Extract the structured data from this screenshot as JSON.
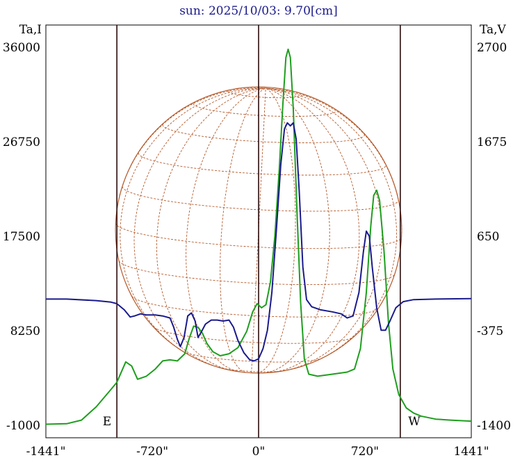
{
  "chart_data": {
    "type": "line",
    "title": "sun: 2025/10/03: 9.70[cm]",
    "y_left_label": "Ta,I",
    "y_right_label": "Ta,V",
    "x_ticks": [
      "-1441\"",
      "-720\"",
      "0\"",
      "720\"",
      "1441\""
    ],
    "x_tick_values": [
      -1441,
      -720,
      0,
      720,
      1441
    ],
    "xlim": [
      -1441,
      1441
    ],
    "y_left_ticks": [
      "36000",
      "26750",
      "17500",
      "8250",
      "-1000"
    ],
    "y_left_tick_values": [
      36000,
      26750,
      17500,
      8250,
      -1000
    ],
    "ylim_left": [
      -1000,
      36000
    ],
    "y_right_ticks": [
      "2700",
      "1675",
      "650",
      "-375",
      "-1400"
    ],
    "y_right_tick_values": [
      2700,
      1675,
      650,
      -375,
      -1400
    ],
    "ylim_right": [
      -1400,
      2700
    ],
    "limb_x": [
      -960,
      960
    ],
    "limb_labels": {
      "east": "E",
      "west": "W"
    },
    "series": [
      {
        "axis": "left",
        "color": "#1e9e1e",
        "points": [
          [
            -1441,
            -900
          ],
          [
            -1300,
            -850
          ],
          [
            -1200,
            -500
          ],
          [
            -1100,
            800
          ],
          [
            -1000,
            2500
          ],
          [
            -960,
            3200
          ],
          [
            -900,
            5200
          ],
          [
            -860,
            4800
          ],
          [
            -820,
            3500
          ],
          [
            -760,
            3800
          ],
          [
            -700,
            4500
          ],
          [
            -650,
            5300
          ],
          [
            -600,
            5400
          ],
          [
            -550,
            5300
          ],
          [
            -500,
            6000
          ],
          [
            -470,
            7500
          ],
          [
            -440,
            8700
          ],
          [
            -410,
            8600
          ],
          [
            -380,
            8000
          ],
          [
            -350,
            7000
          ],
          [
            -310,
            6200
          ],
          [
            -260,
            5800
          ],
          [
            -200,
            6000
          ],
          [
            -140,
            6600
          ],
          [
            -80,
            8200
          ],
          [
            -40,
            10100
          ],
          [
            -10,
            10900
          ],
          [
            20,
            10500
          ],
          [
            50,
            10800
          ],
          [
            80,
            13000
          ],
          [
            110,
            17500
          ],
          [
            140,
            24000
          ],
          [
            165,
            30500
          ],
          [
            185,
            35000
          ],
          [
            200,
            35800
          ],
          [
            215,
            35000
          ],
          [
            235,
            30000
          ],
          [
            260,
            20000
          ],
          [
            285,
            11000
          ],
          [
            310,
            5500
          ],
          [
            340,
            4000
          ],
          [
            400,
            3800
          ],
          [
            500,
            4000
          ],
          [
            600,
            4200
          ],
          [
            650,
            4500
          ],
          [
            690,
            6500
          ],
          [
            730,
            12000
          ],
          [
            760,
            18500
          ],
          [
            780,
            21500
          ],
          [
            800,
            22000
          ],
          [
            820,
            21000
          ],
          [
            850,
            16000
          ],
          [
            880,
            9000
          ],
          [
            910,
            4500
          ],
          [
            950,
            2000
          ],
          [
            1000,
            700
          ],
          [
            1050,
            200
          ],
          [
            1100,
            -100
          ],
          [
            1200,
            -400
          ],
          [
            1300,
            -500
          ],
          [
            1441,
            -600
          ]
        ]
      },
      {
        "axis": "left",
        "color": "#1a1a8c",
        "points": [
          [
            -1441,
            11350
          ],
          [
            -1300,
            11350
          ],
          [
            -1100,
            11200
          ],
          [
            -1000,
            11050
          ],
          [
            -960,
            10900
          ],
          [
            -910,
            10300
          ],
          [
            -870,
            9600
          ],
          [
            -840,
            9700
          ],
          [
            -800,
            9900
          ],
          [
            -760,
            9800
          ],
          [
            -700,
            9800
          ],
          [
            -650,
            9700
          ],
          [
            -600,
            9500
          ],
          [
            -575,
            8600
          ],
          [
            -550,
            7400
          ],
          [
            -530,
            6700
          ],
          [
            -505,
            7600
          ],
          [
            -480,
            9700
          ],
          [
            -455,
            10000
          ],
          [
            -430,
            9200
          ],
          [
            -410,
            7600
          ],
          [
            -385,
            8200
          ],
          [
            -360,
            8900
          ],
          [
            -320,
            9300
          ],
          [
            -280,
            9300
          ],
          [
            -240,
            9200
          ],
          [
            -200,
            9300
          ],
          [
            -170,
            8600
          ],
          [
            -140,
            7300
          ],
          [
            -100,
            6100
          ],
          [
            -60,
            5400
          ],
          [
            -30,
            5300
          ],
          [
            0,
            5500
          ],
          [
            30,
            6500
          ],
          [
            60,
            8300
          ],
          [
            90,
            12000
          ],
          [
            120,
            18000
          ],
          [
            150,
            24500
          ],
          [
            175,
            28000
          ],
          [
            195,
            28600
          ],
          [
            215,
            28300
          ],
          [
            235,
            28600
          ],
          [
            255,
            27000
          ],
          [
            275,
            22000
          ],
          [
            300,
            14500
          ],
          [
            325,
            11300
          ],
          [
            360,
            10600
          ],
          [
            420,
            10300
          ],
          [
            500,
            10100
          ],
          [
            560,
            9900
          ],
          [
            600,
            9500
          ],
          [
            640,
            9700
          ],
          [
            680,
            12000
          ],
          [
            710,
            16000
          ],
          [
            730,
            18000
          ],
          [
            750,
            17500
          ],
          [
            770,
            14500
          ],
          [
            800,
            10500
          ],
          [
            830,
            8300
          ],
          [
            860,
            8300
          ],
          [
            890,
            9200
          ],
          [
            930,
            10500
          ],
          [
            980,
            11100
          ],
          [
            1050,
            11300
          ],
          [
            1200,
            11350
          ],
          [
            1441,
            11400
          ]
        ]
      }
    ]
  }
}
